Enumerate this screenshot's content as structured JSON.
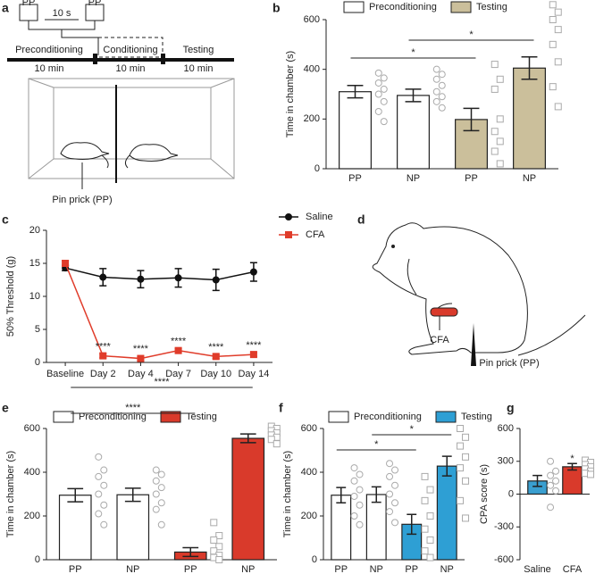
{
  "panel_a": {
    "label": "a",
    "pp_left": "PP",
    "interval": "10 s",
    "pp_right": "PP",
    "phases": [
      "Preconditioning",
      "Conditioning",
      "Testing"
    ],
    "durations": [
      "10 min",
      "10 min",
      "10 min"
    ],
    "stimulus": "Pin prick (PP)"
  },
  "panel_d": {
    "label": "d",
    "injection": "CFA",
    "stimulus": "Pin prick (PP)"
  },
  "chart_data": [
    {
      "type": "bar",
      "label": "b",
      "y_label": "Time in chamber (s)",
      "categories": [
        "PP",
        "NP",
        "PP",
        "NP"
      ],
      "series": [
        {
          "name": "Preconditioning",
          "color": "#ffffff",
          "marker": "circle",
          "values": [
            310,
            295,
            null,
            null
          ],
          "errors": [
            25,
            25,
            null,
            null
          ],
          "points": [
            [
              385,
              365,
              345,
              320,
              300,
              270,
              230,
              190
            ],
            [
              400,
              380,
              360,
              335,
              310,
              290,
              270,
              245
            ],
            null,
            null
          ]
        },
        {
          "name": "Testing",
          "color": "#cbbf9b",
          "marker": "square",
          "values": [
            null,
            null,
            198,
            405
          ],
          "errors": [
            null,
            null,
            45,
            45
          ],
          "points": [
            null,
            null,
            [
              420,
              360,
              320,
              200,
              150,
              110,
              70,
              20
            ],
            [
              660,
              630,
              600,
              560,
              500,
              430,
              330,
              250
            ]
          ]
        }
      ],
      "annotations": [
        "*",
        "*"
      ],
      "ylim": [
        0,
        600
      ],
      "yticks": [
        0,
        200,
        400,
        600
      ]
    },
    {
      "type": "line",
      "label": "c",
      "y_label": "50% Threshold (g)",
      "categories": [
        "Baseline",
        "Day 2",
        "Day 4",
        "Day 7",
        "Day 10",
        "Day 14"
      ],
      "series": [
        {
          "name": "Saline",
          "color": "#111111",
          "marker": "circle",
          "values": [
            14.3,
            12.9,
            12.6,
            12.8,
            12.5,
            13.7
          ],
          "errors": [
            0.4,
            1.3,
            1.3,
            1.4,
            1.6,
            1.4
          ]
        },
        {
          "name": "CFA",
          "color": "#e03c2a",
          "marker": "square",
          "values": [
            15,
            1,
            0.6,
            1.8,
            0.9,
            1.2
          ],
          "errors": [
            0.4,
            0.3,
            0.3,
            0.3,
            0.3,
            0.3
          ]
        }
      ],
      "significance": [
        null,
        "****",
        "****",
        "****",
        "****",
        "****"
      ],
      "ylim": [
        0,
        20
      ],
      "yticks": [
        0,
        5,
        10,
        15,
        20
      ]
    },
    {
      "type": "bar",
      "label": "e",
      "y_label": "Time in chamber (s)",
      "categories": [
        "PP",
        "NP",
        "PP",
        "NP"
      ],
      "series": [
        {
          "name": "Preconditioning",
          "color": "#ffffff",
          "marker": "circle",
          "values": [
            295,
            297,
            null,
            null
          ],
          "errors": [
            30,
            30,
            null,
            null
          ],
          "points": [
            [
              470,
              410,
              380,
              340,
              300,
              250,
              210,
              160
            ],
            [
              410,
              390,
              360,
              330,
              300,
              260,
              230,
              160
            ],
            null,
            null
          ]
        },
        {
          "name": "Testing",
          "color": "#d93a2b",
          "marker": "square",
          "values": [
            null,
            null,
            35,
            555
          ],
          "errors": [
            null,
            null,
            20,
            20
          ],
          "points": [
            null,
            null,
            [
              170,
              110,
              90,
              60,
              40,
              20,
              10,
              0
            ],
            [
              610,
              600,
              590,
              580,
              570,
              560,
              550,
              530
            ]
          ]
        }
      ],
      "annotations": [
        "****",
        "****"
      ],
      "ylim": [
        0,
        600
      ],
      "yticks": [
        0,
        200,
        400,
        600
      ]
    },
    {
      "type": "bar",
      "label": "f",
      "y_label": "Time in chamber (s)",
      "categories": [
        "PP",
        "NP",
        "PP",
        "NP"
      ],
      "series": [
        {
          "name": "Preconditioning",
          "color": "#ffffff",
          "marker": "circle",
          "values": [
            295,
            298,
            null,
            null
          ],
          "errors": [
            35,
            35,
            null,
            null
          ],
          "points": [
            [
              420,
              390,
              360,
              320,
              290,
              250,
              200,
              160
            ],
            [
              440,
              410,
              380,
              340,
              300,
              260,
              220,
              170
            ],
            null,
            null
          ]
        },
        {
          "name": "Testing",
          "color": "#2e9fd4",
          "marker": "square",
          "values": [
            null,
            null,
            162,
            428
          ],
          "errors": [
            null,
            null,
            45,
            45
          ],
          "points": [
            null,
            null,
            [
              380,
              320,
              270,
              200,
              140,
              90,
              40,
              10
            ],
            [
              600,
              560,
              520,
              470,
              420,
              360,
              270,
              190
            ]
          ]
        }
      ],
      "annotations": [
        "*",
        "*"
      ],
      "ylim": [
        0,
        600
      ],
      "yticks": [
        0,
        200,
        400,
        600
      ]
    },
    {
      "type": "bar",
      "label": "g",
      "y_label": "CPA score (s)",
      "categories": [
        "Saline",
        "CFA"
      ],
      "values": [
        120,
        250
      ],
      "errors": [
        50,
        30
      ],
      "colors": [
        "#3a9fd0",
        "#d93a2b"
      ],
      "markers": [
        "circle",
        "square"
      ],
      "points": [
        [
          300,
          210,
          170,
          120,
          80,
          30,
          -120
        ],
        [
          310,
          290,
          270,
          250,
          230,
          210,
          190,
          180
        ]
      ],
      "annotations": [
        "*"
      ],
      "ylim": [
        -600,
        600
      ],
      "yticks": [
        -600,
        -300,
        0,
        300,
        600
      ]
    }
  ]
}
